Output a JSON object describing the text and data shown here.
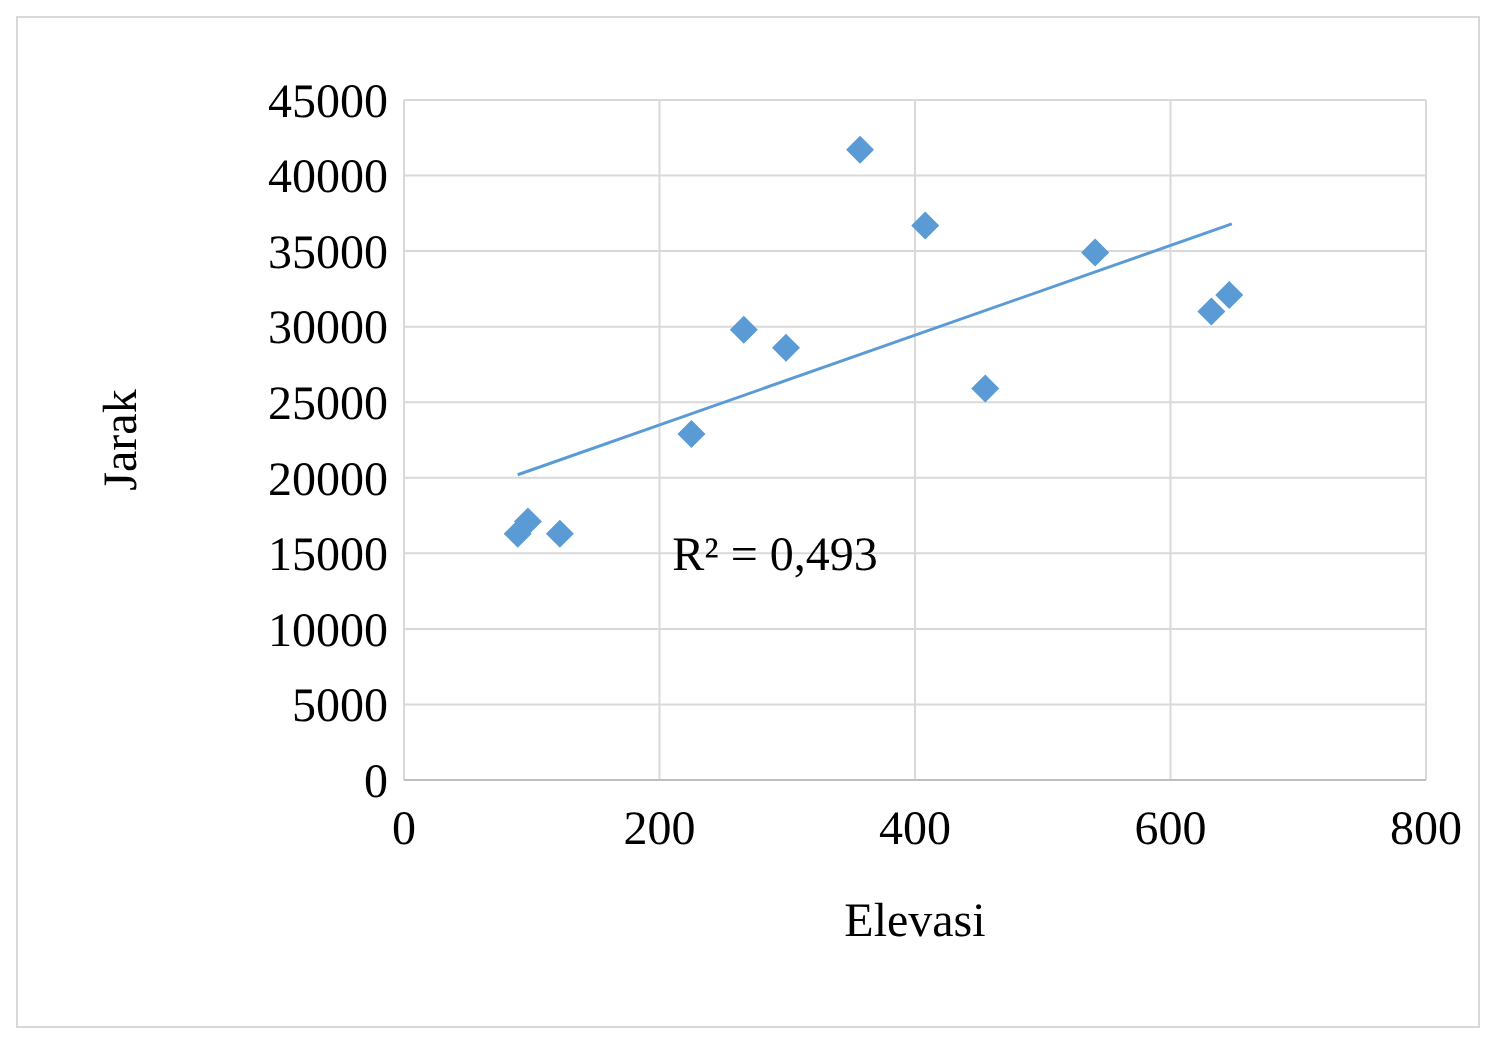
{
  "chart_data": {
    "type": "scatter",
    "xlabel": "Elevasi",
    "ylabel": "Jarak",
    "xlim": [
      0,
      800
    ],
    "xticks": [
      0,
      200,
      400,
      600,
      800
    ],
    "ylim": [
      0,
      45000
    ],
    "yticks": [
      0,
      5000,
      10000,
      15000,
      20000,
      25000,
      30000,
      35000,
      40000,
      45000
    ],
    "grid": true,
    "marker": "diamond",
    "annotations": [
      "R² = 0,493"
    ],
    "series": [
      {
        "type": "scatter",
        "color": "#5b9bd5",
        "x": [
          89,
          97,
          122,
          225,
          266,
          299,
          357,
          408,
          455,
          541,
          632,
          646
        ],
        "values": [
          16300,
          17100,
          16300,
          22900,
          29800,
          28600,
          41700,
          36700,
          25900,
          34900,
          31000,
          32100
        ]
      },
      {
        "type": "line",
        "color": "#5b9bd5",
        "marker": "none",
        "x": [
          89,
          648
        ],
        "values": [
          20200,
          36800
        ]
      }
    ]
  }
}
